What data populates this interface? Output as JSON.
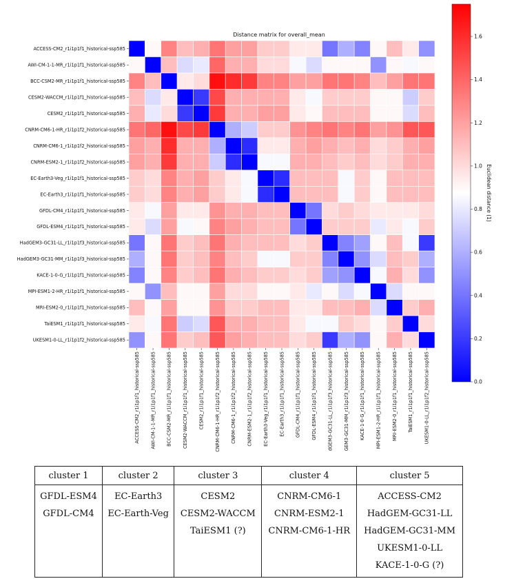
{
  "chart_data": {
    "type": "heatmap",
    "title": "Distance matrix for overall_mean",
    "colorbar": {
      "label": "Euclidean distance (1)",
      "ticks": [
        "0.0",
        "0.2",
        "0.4",
        "0.6",
        "0.8",
        "1.0",
        "1.2",
        "1.4",
        "1.6"
      ],
      "range": [
        0.0,
        1.75
      ],
      "colormap": "bwr",
      "colors": {
        "low": "#0000ff",
        "mid": "#ffffff",
        "high": "#ff0000"
      }
    },
    "row_labels": [
      "ACCESS-CM2_r1i1p1f1_historical-ssp585",
      "AWI-CM-1-1-MR_r1i1p1f1_historical-ssp585",
      "BCC-CSM2-MR_r1i1p1f1_historical-ssp585",
      "CESM2-WACCM_r1i1p1f1_historical-ssp585",
      "CESM2_r1i1p1f1_historical-ssp585",
      "CNRM-CM6-1-HR_r1i1p1f2_historical-ssp585",
      "CNRM-CM6-1_r1i1p1f2_historical-ssp585",
      "CNRM-ESM2-1_r1i1p1f2_historical-ssp585",
      "EC-Earth3-Veg_r1i1p1f1_historical-ssp585",
      "EC-Earth3_r1i1p1f1_historical-ssp585",
      "GFDL-CM4_r1i1p1f1_historical-ssp585",
      "GFDL-ESM4_r1i1p1f1_historical-ssp585",
      "HadGEM3-GC31-LL_r1i1p1f3_historical-ssp585",
      "HadGEM3-GC31-MM_r1i1p1f3_historical-ssp585",
      "KACE-1-0-G_r1i1p1f1_historical-ssp585",
      "MPI-ESM1-2-HR_r1i1p1f1_historical-ssp585",
      "MRI-ESM2-0_r1i1p1f1_historical-ssp585",
      "TaiESM1_r1i1p1f1_historical-ssp585",
      "UKESM1-0-LL_r1i1p1f2_historical-ssp585"
    ],
    "col_labels": [
      "ACCESS-CM2_r1i1p1f1_historical-ssp585",
      "AWI-CM-1-1-MR_r1i1p1f1_historical-ssp585",
      "BCC-CSM2-MR_r1i1p1f1_historical-ssp585",
      "CESM2-WACCM_r1i1p1f1_historical-ssp585",
      "CESM2_r1i1p1f1_historical-ssp585",
      "CNRM-CM6-1-HR_r1i1p1f2_historical-ssp585",
      "CNRM-CM6-1_r1i1p1f2_historical-ssp585",
      "CNRM-ESM2-1_r1i1p1f2_historical-ssp585",
      "EC-Earth3-Veg_r1i1p1f1_historical-ssp585",
      "EC-Earth3_r1i1p1f1_historical-ssp585",
      "GFDL-CM4_r1i1p1f1_historical-ssp585",
      "GFDL-ESM4_r1i1p1f1_historical-ssp585",
      "dGEM3-GC31-LL_r1i1p1f3_historical-ssp585",
      "GEM3-GC31-MM_r1i1p1f3_historical-ssp585",
      "KACE-1-0-G_r1i1p1f1_historical-ssp585",
      "MPI-ESM1-2-HR_r1i1p1f1_historical-ssp585",
      "MRI-ESM2-0_r1i1p1f1_historical-ssp585",
      "TaiESM1_r1i1p1f1_historical-ssp585",
      "UKESM1-0-LL_r1i1p1f2_historical-ssp585"
    ],
    "values": [
      [
        0.0,
        0.9,
        1.3,
        1.1,
        1.15,
        1.35,
        1.2,
        1.2,
        1.05,
        1.05,
        0.95,
        0.95,
        0.4,
        0.6,
        0.45,
        0.9,
        1.1,
        0.95,
        0.5
      ],
      [
        0.9,
        0.0,
        1.1,
        0.75,
        0.8,
        1.4,
        1.15,
        1.15,
        1.0,
        1.0,
        0.85,
        0.75,
        0.9,
        0.9,
        0.9,
        0.5,
        0.9,
        0.85,
        0.9
      ],
      [
        1.3,
        1.1,
        0.0,
        0.95,
        1.0,
        1.7,
        1.6,
        1.55,
        1.3,
        1.3,
        1.2,
        1.2,
        1.35,
        1.35,
        1.3,
        1.1,
        1.2,
        1.35,
        1.35
      ],
      [
        1.1,
        0.75,
        0.95,
        0.0,
        0.2,
        1.5,
        1.15,
        1.15,
        1.15,
        1.15,
        0.95,
        0.85,
        1.05,
        1.05,
        1.05,
        0.9,
        0.9,
        0.7,
        1.05
      ],
      [
        1.15,
        0.8,
        1.0,
        0.2,
        0.0,
        1.55,
        1.15,
        1.15,
        1.2,
        1.2,
        0.95,
        0.9,
        1.1,
        1.1,
        1.1,
        0.9,
        0.9,
        0.75,
        1.1
      ],
      [
        1.35,
        1.4,
        1.7,
        1.5,
        1.55,
        0.0,
        0.6,
        0.7,
        1.05,
        1.05,
        1.25,
        1.3,
        1.35,
        1.3,
        1.35,
        1.2,
        1.25,
        1.45,
        1.45
      ],
      [
        1.2,
        1.15,
        1.6,
        1.15,
        1.15,
        0.6,
        0.0,
        0.15,
        0.95,
        0.95,
        1.15,
        1.2,
        1.15,
        1.1,
        1.15,
        1.0,
        1.05,
        1.15,
        1.2
      ],
      [
        1.2,
        1.15,
        1.55,
        1.15,
        1.15,
        0.7,
        0.15,
        0.0,
        0.85,
        0.85,
        1.15,
        1.15,
        1.1,
        1.05,
        1.1,
        1.0,
        1.05,
        1.15,
        1.15
      ],
      [
        1.05,
        1.0,
        1.3,
        1.15,
        1.2,
        1.05,
        0.95,
        0.85,
        0.0,
        0.15,
        1.1,
        1.1,
        1.1,
        0.85,
        1.05,
        0.9,
        1.1,
        1.1,
        1.1
      ],
      [
        1.05,
        1.0,
        1.3,
        1.15,
        1.2,
        1.05,
        0.95,
        0.85,
        0.15,
        0.0,
        1.1,
        1.1,
        1.1,
        0.85,
        1.05,
        0.9,
        1.1,
        1.1,
        1.1
      ],
      [
        0.95,
        0.85,
        1.2,
        0.95,
        0.95,
        1.25,
        1.15,
        1.15,
        1.1,
        1.1,
        0.0,
        0.4,
        1.0,
        1.05,
        1.0,
        0.95,
        0.95,
        0.95,
        1.0
      ],
      [
        0.95,
        0.75,
        1.2,
        0.85,
        0.9,
        1.3,
        1.2,
        1.15,
        1.1,
        1.1,
        0.4,
        0.0,
        1.05,
        1.05,
        1.05,
        0.8,
        0.95,
        0.85,
        1.05
      ],
      [
        0.4,
        0.9,
        1.35,
        1.05,
        1.1,
        1.35,
        1.15,
        1.1,
        1.1,
        1.1,
        1.0,
        1.05,
        0.0,
        0.45,
        0.55,
        0.9,
        1.1,
        0.85,
        0.2
      ],
      [
        0.6,
        0.9,
        1.35,
        1.05,
        1.1,
        1.3,
        1.1,
        1.05,
        0.85,
        0.85,
        1.05,
        1.05,
        0.45,
        0.0,
        0.5,
        0.75,
        1.1,
        1.05,
        0.6
      ],
      [
        0.45,
        0.9,
        1.3,
        1.05,
        1.1,
        1.35,
        1.15,
        1.1,
        1.05,
        1.05,
        1.0,
        1.05,
        0.55,
        0.5,
        0.0,
        0.85,
        1.15,
        1.0,
        0.5
      ],
      [
        0.9,
        0.5,
        1.1,
        0.9,
        0.9,
        1.2,
        1.0,
        1.0,
        0.9,
        0.9,
        0.95,
        0.8,
        0.9,
        0.75,
        0.85,
        0.0,
        0.75,
        0.9,
        0.9
      ],
      [
        1.1,
        0.9,
        1.2,
        0.9,
        0.9,
        1.25,
        1.05,
        1.05,
        1.1,
        1.1,
        0.95,
        0.95,
        1.1,
        1.1,
        1.15,
        0.75,
        0.0,
        1.05,
        1.15
      ],
      [
        0.95,
        0.85,
        1.35,
        0.7,
        0.75,
        1.45,
        1.15,
        1.15,
        1.1,
        1.1,
        0.95,
        0.85,
        0.85,
        1.05,
        1.0,
        0.9,
        1.05,
        0.0,
        1.0
      ],
      [
        0.5,
        0.9,
        1.35,
        1.05,
        1.1,
        1.45,
        1.2,
        1.15,
        1.1,
        1.1,
        1.0,
        1.05,
        0.2,
        0.6,
        0.5,
        0.9,
        1.15,
        1.0,
        0.0
      ]
    ]
  },
  "cluster_table": {
    "headers": [
      "cluster 1",
      "cluster 2",
      "cluster 3",
      "cluster 4",
      "cluster 5"
    ],
    "columns": [
      [
        "GFDL-ESM4",
        "GFDL-CM4"
      ],
      [
        "EC-Earth3",
        "EC-Earth-Veg"
      ],
      [
        "CESM2",
        "CESM2-WACCM",
        "TaiESM1 (?)"
      ],
      [
        "CNRM-CM6-1",
        "CNRM-ESM2-1",
        "CNRM-CM6-1-HR"
      ],
      [
        "ACCESS-CM2",
        "HadGEM-GC31-LL",
        "HadGEM-GC31-MM",
        "UKESM1-0-LL",
        "KACE-1-0-G (?)"
      ]
    ]
  }
}
